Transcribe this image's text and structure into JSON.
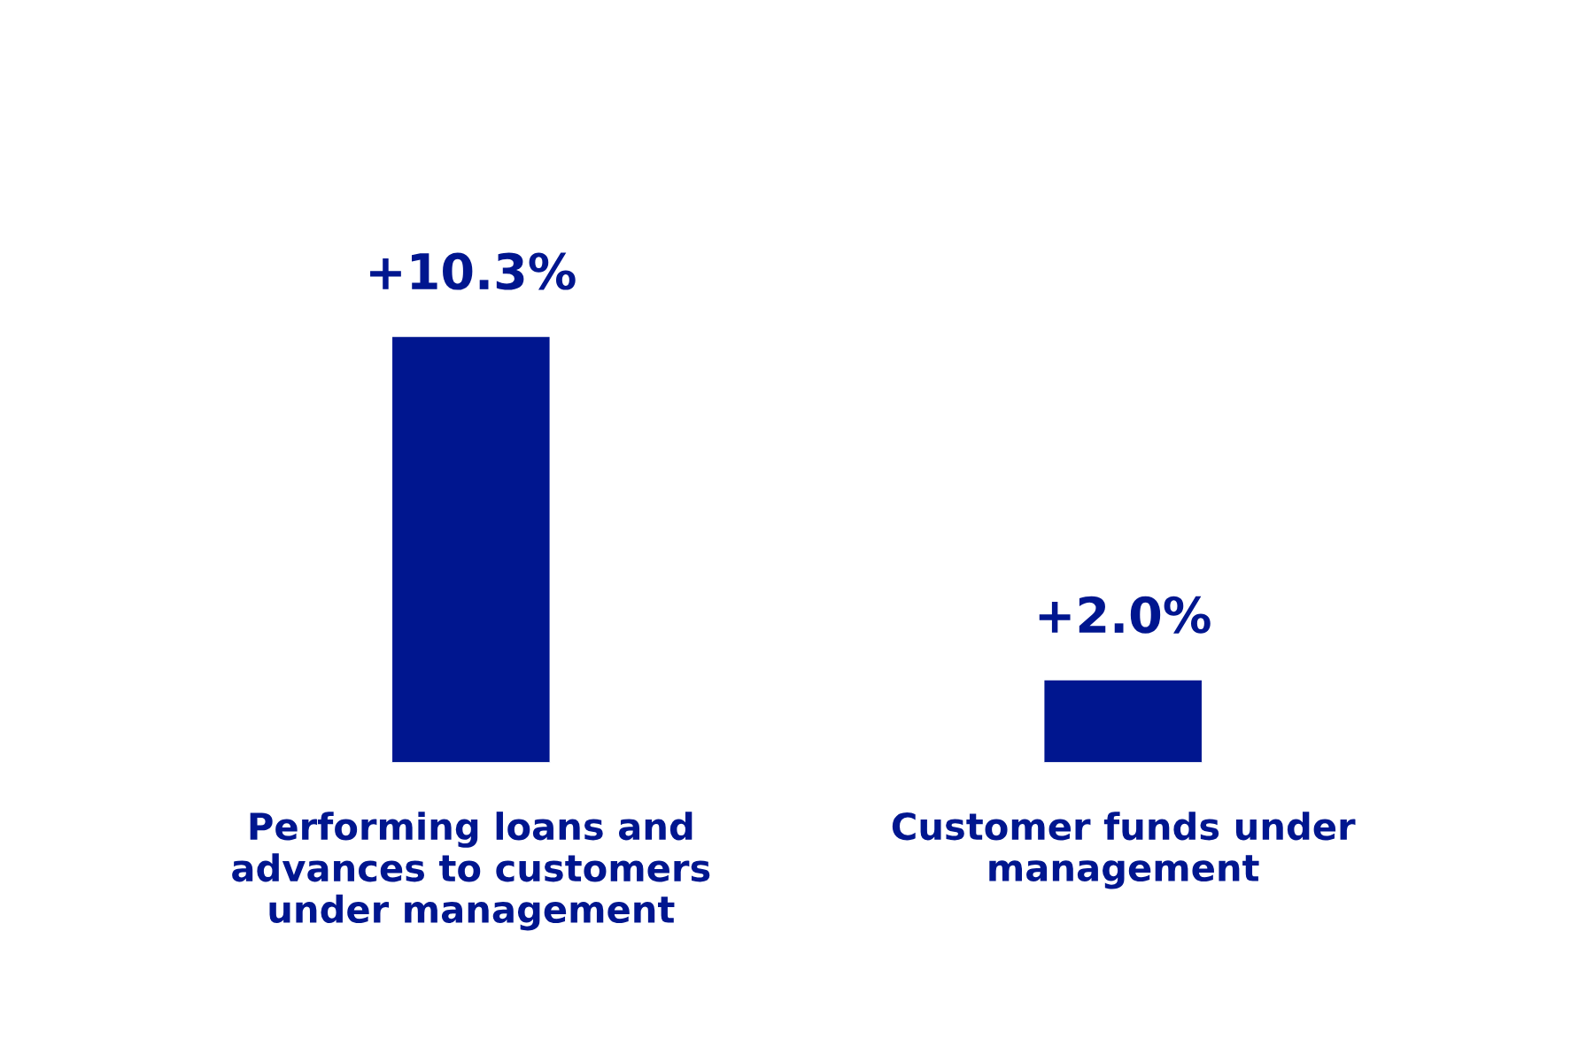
{
  "chart_data": {
    "type": "bar",
    "categories": [
      "Performing loans and advances to customers under management",
      "Customer funds under management"
    ],
    "values": [
      10.3,
      2.0
    ],
    "value_labels": [
      "+10.3%",
      "+2.0%"
    ],
    "color": "#00168f"
  }
}
